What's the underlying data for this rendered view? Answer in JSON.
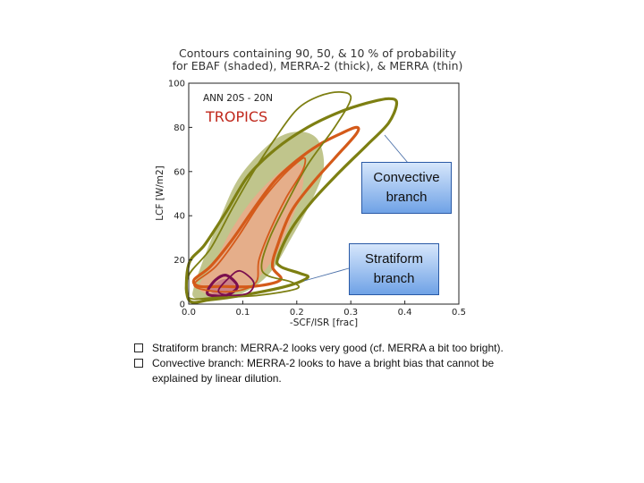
{
  "chart_data": {
    "type": "contour",
    "title_line1": "Contours containing 90, 50, & 10 % of probability",
    "title_line2": "for EBAF (shaded), MERRA-2 (thick), & MERRA (thin)",
    "xlabel": "-SCF/ISR [frac]",
    "ylabel": "LCF [W/m2]",
    "xlim": [
      0.0,
      0.5
    ],
    "ylim": [
      0,
      100
    ],
    "x_ticks": [
      "0.0",
      "0.1",
      "0.2",
      "0.3",
      "0.4",
      "0.5"
    ],
    "y_ticks": [
      "0",
      "20",
      "40",
      "60",
      "80",
      "100"
    ],
    "panel_label": "ANN   20S - 20N",
    "region_label": "TROPICS",
    "colors": {
      "ebaf_90": "#b9bf7f",
      "ebaf_50": "#e9ab8a",
      "ebaf_10": "#c97d86",
      "p90": "#7d7f12",
      "p50": "#d45a1a",
      "p10": "#7b0f4e"
    },
    "series": [
      {
        "name": "EBAF",
        "probability": 90,
        "points": [
          [
            0.01,
            8
          ],
          [
            0.03,
            22
          ],
          [
            0.06,
            40
          ],
          [
            0.09,
            56
          ],
          [
            0.13,
            68
          ],
          [
            0.17,
            76
          ],
          [
            0.21,
            78
          ],
          [
            0.24,
            74
          ],
          [
            0.25,
            62
          ],
          [
            0.23,
            48
          ],
          [
            0.19,
            30
          ],
          [
            0.15,
            14
          ],
          [
            0.1,
            5
          ],
          [
            0.04,
            2
          ],
          [
            0.01,
            3
          ]
        ]
      },
      {
        "name": "EBAF",
        "probability": 50,
        "points": [
          [
            0.02,
            9
          ],
          [
            0.05,
            20
          ],
          [
            0.08,
            34
          ],
          [
            0.12,
            48
          ],
          [
            0.16,
            58
          ],
          [
            0.19,
            63
          ],
          [
            0.21,
            62
          ],
          [
            0.21,
            52
          ],
          [
            0.19,
            38
          ],
          [
            0.16,
            22
          ],
          [
            0.12,
            10
          ],
          [
            0.07,
            5
          ],
          [
            0.03,
            5
          ]
        ]
      },
      {
        "name": "EBAF",
        "probability": 10,
        "points": [
          [
            0.04,
            7
          ],
          [
            0.06,
            11
          ],
          [
            0.08,
            11
          ],
          [
            0.085,
            7
          ],
          [
            0.07,
            4
          ],
          [
            0.05,
            4
          ]
        ]
      },
      {
        "name": "MERRA-2",
        "probability": 90,
        "points": [
          [
            0.0,
            18
          ],
          [
            0.03,
            27
          ],
          [
            0.07,
            42
          ],
          [
            0.11,
            58
          ],
          [
            0.16,
            70
          ],
          [
            0.22,
            80
          ],
          [
            0.28,
            87
          ],
          [
            0.33,
            91
          ],
          [
            0.37,
            93
          ],
          [
            0.385,
            91
          ],
          [
            0.37,
            82
          ],
          [
            0.33,
            72
          ],
          [
            0.28,
            60
          ],
          [
            0.23,
            47
          ],
          [
            0.19,
            34
          ],
          [
            0.165,
            21
          ],
          [
            0.17,
            17
          ],
          [
            0.205,
            14
          ],
          [
            0.22,
            12
          ],
          [
            0.18,
            8
          ],
          [
            0.1,
            4
          ],
          [
            0.04,
            2
          ],
          [
            0.0,
            2
          ]
        ]
      },
      {
        "name": "MERRA-2",
        "probability": 50,
        "points": [
          [
            0.01,
            11
          ],
          [
            0.04,
            17
          ],
          [
            0.08,
            29
          ],
          [
            0.12,
            43
          ],
          [
            0.16,
            56
          ],
          [
            0.2,
            65
          ],
          [
            0.24,
            72
          ],
          [
            0.28,
            77
          ],
          [
            0.31,
            80
          ],
          [
            0.31,
            77
          ],
          [
            0.27,
            66
          ],
          [
            0.23,
            55
          ],
          [
            0.19,
            42
          ],
          [
            0.165,
            27
          ],
          [
            0.155,
            17
          ],
          [
            0.17,
            11
          ],
          [
            0.12,
            8
          ],
          [
            0.06,
            8
          ],
          [
            0.02,
            8
          ]
        ]
      },
      {
        "name": "MERRA-2",
        "probability": 10,
        "points": [
          [
            0.035,
            6
          ],
          [
            0.05,
            11
          ],
          [
            0.07,
            13
          ],
          [
            0.09,
            8
          ],
          [
            0.07,
            4
          ],
          [
            0.04,
            4
          ]
        ]
      },
      {
        "name": "MERRA",
        "probability": 90,
        "points": [
          [
            0.0,
            13
          ],
          [
            0.04,
            25
          ],
          [
            0.08,
            43
          ],
          [
            0.12,
            60
          ],
          [
            0.16,
            75
          ],
          [
            0.2,
            88
          ],
          [
            0.24,
            94
          ],
          [
            0.28,
            96
          ],
          [
            0.3,
            93
          ],
          [
            0.27,
            80
          ],
          [
            0.22,
            63
          ],
          [
            0.18,
            45
          ],
          [
            0.15,
            30
          ],
          [
            0.135,
            18
          ],
          [
            0.145,
            13
          ],
          [
            0.19,
            10
          ],
          [
            0.2,
            7
          ],
          [
            0.13,
            4
          ],
          [
            0.05,
            3
          ],
          [
            0.0,
            3
          ]
        ]
      },
      {
        "name": "MERRA",
        "probability": 50,
        "points": [
          [
            0.01,
            9
          ],
          [
            0.05,
            17
          ],
          [
            0.09,
            30
          ],
          [
            0.13,
            45
          ],
          [
            0.17,
            57
          ],
          [
            0.2,
            64
          ],
          [
            0.215,
            66
          ],
          [
            0.21,
            60
          ],
          [
            0.18,
            48
          ],
          [
            0.15,
            33
          ],
          [
            0.13,
            20
          ],
          [
            0.125,
            10
          ],
          [
            0.09,
            6
          ],
          [
            0.04,
            6
          ]
        ]
      },
      {
        "name": "MERRA",
        "probability": 10,
        "points": [
          [
            0.055,
            6
          ],
          [
            0.075,
            12
          ],
          [
            0.095,
            15
          ],
          [
            0.12,
            10
          ],
          [
            0.11,
            5
          ],
          [
            0.075,
            4
          ]
        ]
      }
    ]
  },
  "callouts": {
    "convective": "Convective branch",
    "stratiform": "Stratiform branch"
  },
  "bullets": [
    "Stratiform branch: MERRA-2 looks very good (cf. MERRA a bit too bright).",
    "Convective branch: MERRA-2 looks to have a bright bias that cannot be explained by linear dilution."
  ]
}
